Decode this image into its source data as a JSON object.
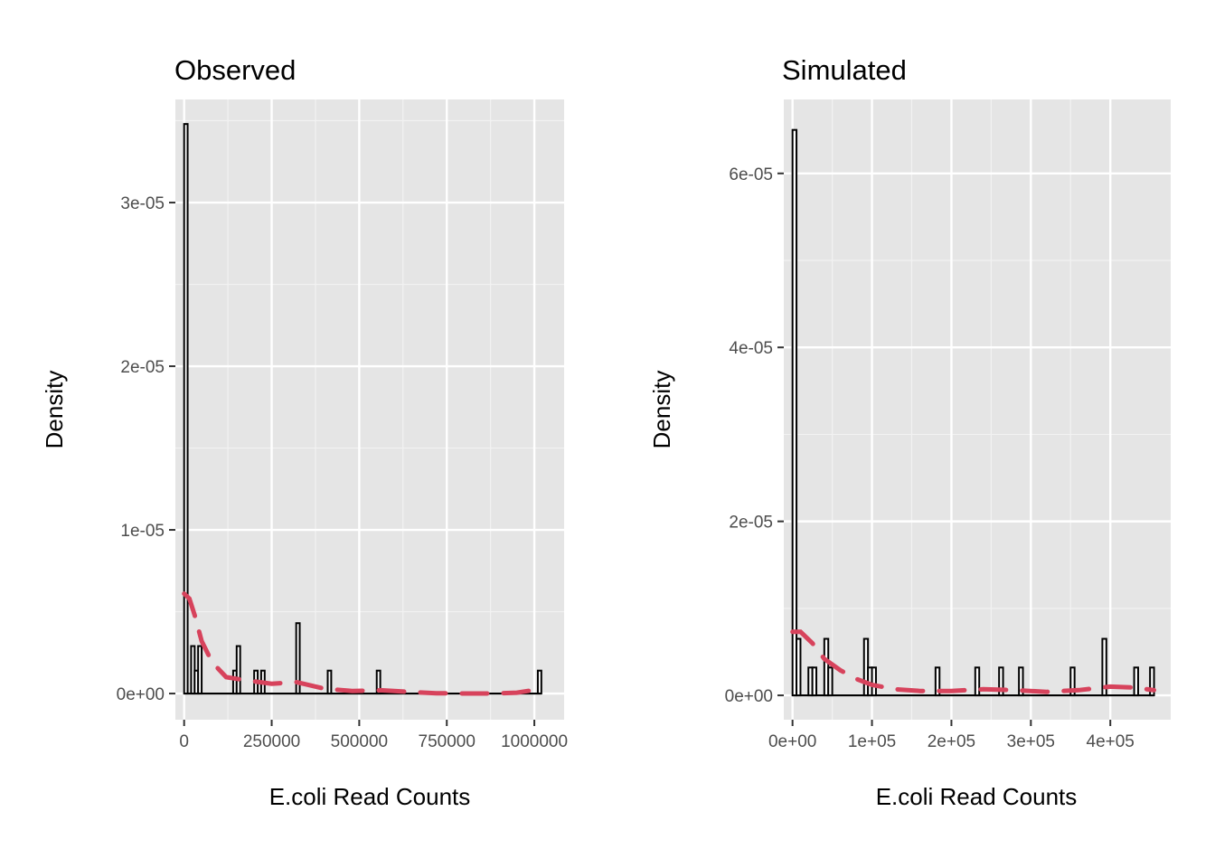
{
  "chart_data": [
    {
      "type": "bar",
      "title": "Observed",
      "xlabel": "E.coli Read Counts",
      "ylabel": "Density",
      "xlim": [
        -25000,
        1085000
      ],
      "ylim": [
        -1.6e-06,
        3.63e-05
      ],
      "x_ticks": [
        0,
        250000,
        500000,
        750000,
        1000000
      ],
      "x_tick_labels": [
        "0",
        "250000",
        "500000",
        "750000",
        "1000000"
      ],
      "y_ticks": [
        0,
        1e-05,
        2e-05,
        3e-05
      ],
      "y_tick_labels": [
        "0e+00",
        "1e-05",
        "2e-05",
        "3e-05"
      ],
      "bin_width": 10000,
      "bins": [
        {
          "x": 0,
          "y": 3.48e-05
        },
        {
          "x": 20000,
          "y": 2.9e-06
        },
        {
          "x": 30000,
          "y": 1.4e-06
        },
        {
          "x": 40000,
          "y": 2.9e-06
        },
        {
          "x": 140000,
          "y": 1.4e-06
        },
        {
          "x": 150000,
          "y": 2.9e-06
        },
        {
          "x": 200000,
          "y": 1.4e-06
        },
        {
          "x": 220000,
          "y": 1.4e-06
        },
        {
          "x": 320000,
          "y": 4.3e-06
        },
        {
          "x": 410000,
          "y": 1.4e-06
        },
        {
          "x": 550000,
          "y": 1.4e-06
        },
        {
          "x": 1010000,
          "y": 1.4e-06
        }
      ],
      "density_curve": {
        "x": [
          0,
          15000,
          30000,
          50000,
          80000,
          120000,
          180000,
          250000,
          320000,
          400000,
          480000,
          560000,
          640000,
          720000,
          800000,
          880000,
          950000,
          1025000
        ],
        "y": [
          6.1e-06,
          5.8e-06,
          4.8e-06,
          3.2e-06,
          1.9e-06,
          1e-06,
          8e-07,
          6e-07,
          7e-07,
          3e-07,
          1.5e-07,
          2e-07,
          1e-07,
          2e-08,
          0.0,
          0.0,
          5e-08,
          3e-07
        ]
      }
    },
    {
      "type": "bar",
      "title": "Simulated",
      "xlabel": "E.coli Read Counts",
      "ylabel": "Density",
      "xlim": [
        -11000,
        476000
      ],
      "ylim": [
        -2.8e-06,
        6.85e-05
      ],
      "x_ticks": [
        0,
        100000,
        200000,
        300000,
        400000
      ],
      "x_tick_labels": [
        "0e+00",
        "1e+05",
        "2e+05",
        "3e+05",
        "4e+05"
      ],
      "y_ticks": [
        0,
        2e-05,
        4e-05,
        6e-05
      ],
      "y_tick_labels": [
        "0e+00",
        "2e-05",
        "4e-05",
        "6e-05"
      ],
      "bin_width": 5000,
      "bins": [
        {
          "x": 0,
          "y": 6.5e-05
        },
        {
          "x": 5000,
          "y": 6.5e-06
        },
        {
          "x": 20000,
          "y": 3.2e-06
        },
        {
          "x": 25000,
          "y": 3.2e-06
        },
        {
          "x": 40000,
          "y": 6.5e-06
        },
        {
          "x": 45000,
          "y": 3.2e-06
        },
        {
          "x": 90000,
          "y": 6.5e-06
        },
        {
          "x": 95000,
          "y": 3.2e-06
        },
        {
          "x": 100000,
          "y": 3.2e-06
        },
        {
          "x": 180000,
          "y": 3.2e-06
        },
        {
          "x": 230000,
          "y": 3.2e-06
        },
        {
          "x": 260000,
          "y": 3.2e-06
        },
        {
          "x": 285000,
          "y": 3.2e-06
        },
        {
          "x": 350000,
          "y": 3.2e-06
        },
        {
          "x": 390000,
          "y": 6.5e-06
        },
        {
          "x": 430000,
          "y": 3.2e-06
        },
        {
          "x": 450000,
          "y": 3.2e-06
        }
      ],
      "density_curve": {
        "x": [
          0,
          10000,
          25000,
          40000,
          60000,
          80000,
          100000,
          130000,
          160000,
          200000,
          240000,
          280000,
          320000,
          360000,
          400000,
          430000,
          455000
        ],
        "y": [
          7.3e-06,
          7.3e-06,
          6e-06,
          4.2e-06,
          2.9e-06,
          1.9e-06,
          1.2e-06,
          7e-07,
          5e-07,
          5e-07,
          7e-07,
          6e-07,
          4e-07,
          6e-07,
          1e-06,
          9e-07,
          6e-07
        ]
      }
    }
  ]
}
